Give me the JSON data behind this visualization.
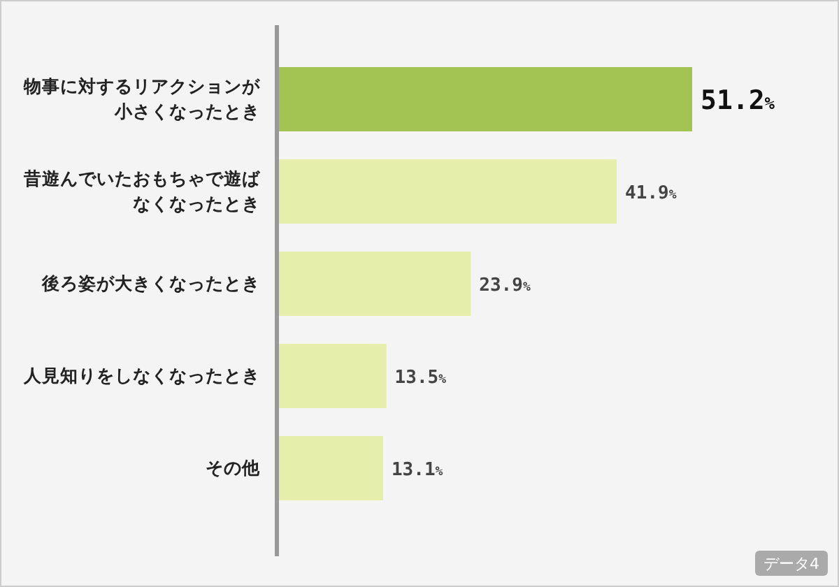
{
  "chart_data": {
    "type": "bar",
    "orientation": "horizontal",
    "relative": false,
    "categories": [
      "物事に対するリアクションが小さくなったとき",
      "昔遊んでいたおもちゃで遊ばなくなったとき",
      "後ろ姿が大きくなったとき",
      "人見知りをしなくなったとき",
      "その他"
    ],
    "values": [
      51.2,
      41.9,
      23.9,
      13.5,
      13.1
    ],
    "colors": [
      "#a3c452",
      "#e5eeaa",
      "#e5eeaa",
      "#e5eeaa",
      "#e5eeaa"
    ],
    "value_labels": [
      "51.2%",
      "41.9%",
      "23.9%",
      "13.5%",
      "13.1%"
    ],
    "annotations": [
      "データ4"
    ]
  }
}
